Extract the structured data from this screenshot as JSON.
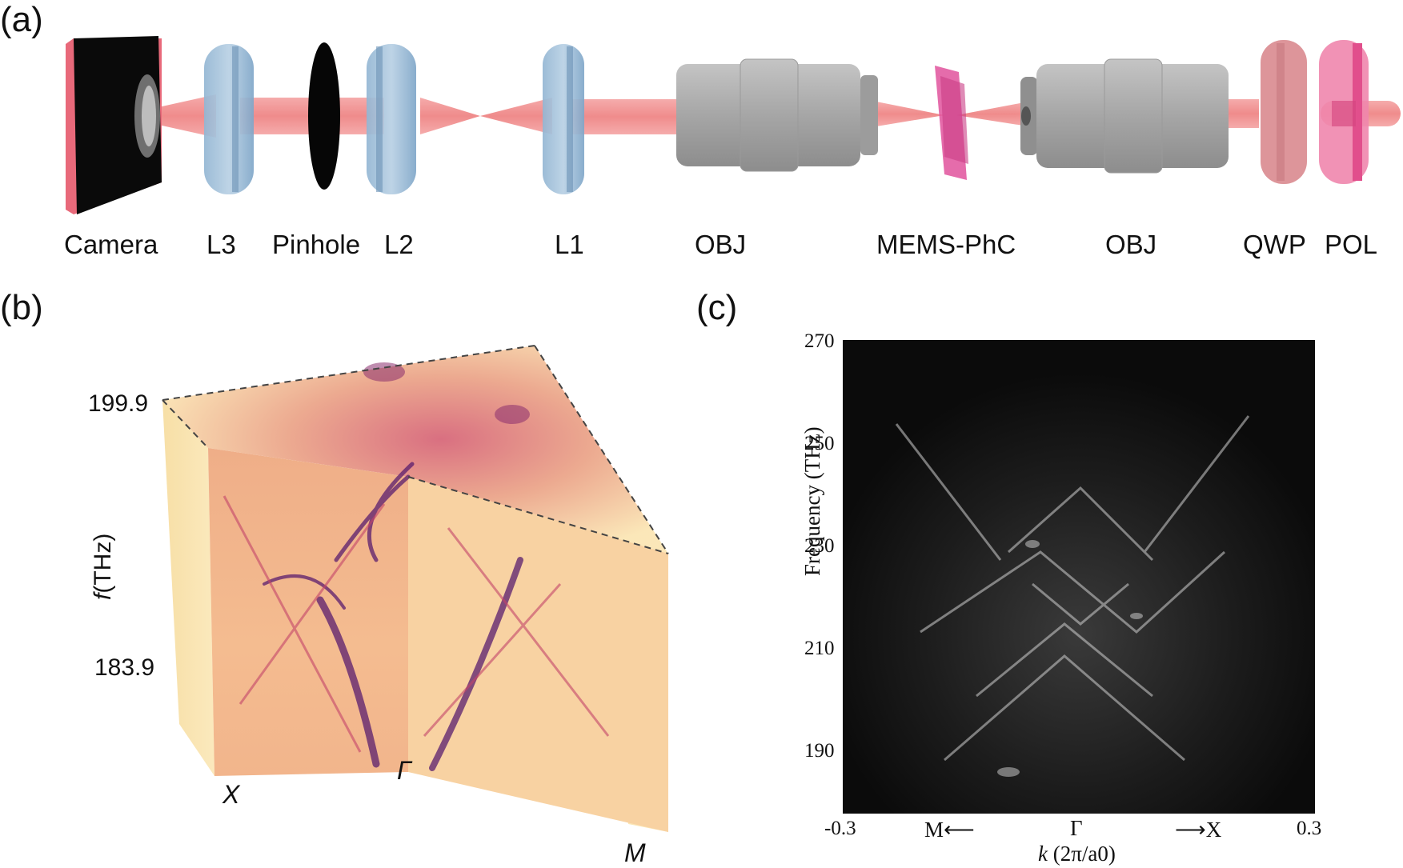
{
  "panels": {
    "a": {
      "label": "(a)"
    },
    "b": {
      "label": "(b)"
    },
    "c": {
      "label": "(c)"
    }
  },
  "setup": {
    "components": [
      {
        "id": "camera",
        "label": "Camera"
      },
      {
        "id": "l3",
        "label": "L3"
      },
      {
        "id": "pinhole",
        "label": "Pinhole"
      },
      {
        "id": "l2",
        "label": "L2"
      },
      {
        "id": "l1",
        "label": "L1"
      },
      {
        "id": "obj1",
        "label": "OBJ"
      },
      {
        "id": "memsphc",
        "label": "MEMS-PhC"
      },
      {
        "id": "obj2",
        "label": "OBJ"
      },
      {
        "id": "qwp",
        "label": "QWP"
      },
      {
        "id": "pol",
        "label": "POL"
      }
    ],
    "colors": {
      "beam": "#f08a8a",
      "lens": "#7fa6c8",
      "objective": "#a9a9a9",
      "sample": "#e0529c",
      "qwp": "#d98a8f",
      "pol": "#e85f95"
    }
  },
  "band_3d": {
    "axis_label_italic": "f",
    "axis_label_unit": "(THz)",
    "f_top": "199.9",
    "f_bottom": "183.9",
    "k_labels": {
      "x": "X",
      "gamma": "Γ",
      "m": "M"
    },
    "colormap": [
      "#fbe7b5",
      "#f3a878",
      "#c4456a",
      "#5a1d6e"
    ]
  },
  "chart_data": {
    "type": "heatmap",
    "ylabel": "Frequency (THz)",
    "xlabel_prefix": "k",
    "xlabel_unit": "(2π/a0)",
    "xlim": [
      -0.3,
      0.3
    ],
    "ylim": [
      180,
      270
    ],
    "yticks": [
      "190",
      "210",
      "230",
      "250",
      "270"
    ],
    "xticks": [
      "-0.3",
      "0.3"
    ],
    "direction_labels": {
      "left": "M",
      "center": "Γ",
      "right": "X"
    },
    "colormap": "grayscale"
  }
}
